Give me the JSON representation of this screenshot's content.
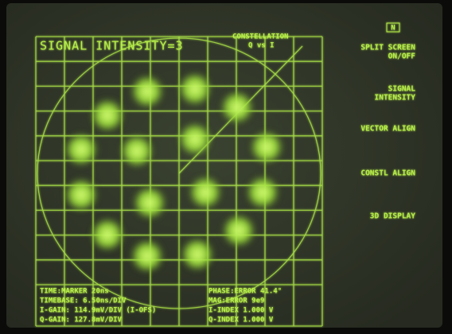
{
  "header": {
    "title": "SIGNAL INTENSITY=3",
    "mode": "CONSTELLATION",
    "axes": "Q vs I",
    "badge": "N"
  },
  "softkeys": [
    [
      "SPLIT SCREEN",
      "ON/OFF"
    ],
    [
      "SIGNAL",
      "INTENSITY"
    ],
    [
      "VECTOR ALIGN"
    ],
    [
      "CONSTL ALIGN"
    ],
    [
      "3D DISPLAY"
    ]
  ],
  "status": {
    "left": [
      "TIME:MARKER 20ns",
      "TIMEBASE: 6.50ns/DIV",
      "I-GAIN: 114.9mV/DIV (I-OFS)",
      "Q-GAIN: 127.8mV/DIV"
    ],
    "right": [
      "PHASE:ERROR  41.4°",
      "MAG:ERROR  9e9",
      "I-INDEX  1.000  V",
      "Q-INDEX  1.000  V"
    ]
  }
}
